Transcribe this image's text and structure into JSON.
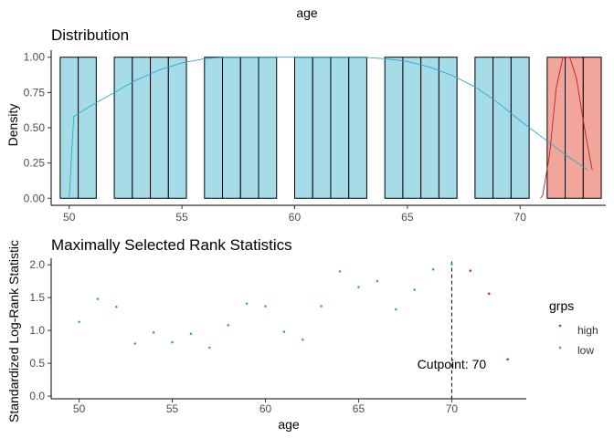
{
  "figure": {
    "title": "age"
  },
  "chart_data": [
    {
      "type": "bar",
      "title": "Distribution",
      "xlabel": "",
      "ylabel": "Density",
      "xlim": [
        49.2,
        73.8
      ],
      "ylim": [
        -0.05,
        1.05
      ],
      "x_ticks": [
        50,
        55,
        60,
        65,
        70
      ],
      "y_ticks": [
        0.0,
        0.25,
        0.5,
        0.75,
        1.0
      ],
      "y_tick_labels": [
        "0.00",
        "0.25",
        "0.50",
        "0.75",
        "1.00"
      ],
      "grid": false,
      "colors": {
        "low": "#A6DCE8",
        "high": "#F2A59A",
        "low_line": "#2AA9D2",
        "high_line": "#C0211F",
        "bar_outline": "#000000"
      },
      "bars_low": [
        {
          "x0": 49.6,
          "x1": 50.4,
          "height": 1.0
        },
        {
          "x0": 50.4,
          "x1": 51.2,
          "height": 1.0
        },
        {
          "x0": 52.0,
          "x1": 52.8,
          "height": 1.0
        },
        {
          "x0": 52.8,
          "x1": 53.6,
          "height": 1.0
        },
        {
          "x0": 53.6,
          "x1": 54.4,
          "height": 1.0
        },
        {
          "x0": 54.4,
          "x1": 55.2,
          "height": 1.0
        },
        {
          "x0": 56.0,
          "x1": 56.8,
          "height": 1.0
        },
        {
          "x0": 56.8,
          "x1": 57.6,
          "height": 1.0
        },
        {
          "x0": 57.6,
          "x1": 58.4,
          "height": 1.0
        },
        {
          "x0": 58.4,
          "x1": 59.2,
          "height": 1.0
        },
        {
          "x0": 60.0,
          "x1": 60.8,
          "height": 1.0
        },
        {
          "x0": 60.8,
          "x1": 61.6,
          "height": 1.0
        },
        {
          "x0": 61.6,
          "x1": 62.4,
          "height": 1.0
        },
        {
          "x0": 62.4,
          "x1": 63.2,
          "height": 1.0
        },
        {
          "x0": 64.0,
          "x1": 64.8,
          "height": 1.0
        },
        {
          "x0": 64.8,
          "x1": 65.6,
          "height": 1.0
        },
        {
          "x0": 65.6,
          "x1": 66.4,
          "height": 1.0
        },
        {
          "x0": 66.4,
          "x1": 67.2,
          "height": 1.0
        },
        {
          "x0": 68.0,
          "x1": 68.8,
          "height": 1.0
        },
        {
          "x0": 68.8,
          "x1": 69.6,
          "height": 1.0
        },
        {
          "x0": 69.6,
          "x1": 70.4,
          "height": 1.0
        }
      ],
      "bars_high": [
        {
          "x0": 71.2,
          "x1": 72.0,
          "height": 1.0
        },
        {
          "x0": 72.0,
          "x1": 72.8,
          "height": 1.0
        },
        {
          "x0": 72.8,
          "x1": 73.6,
          "height": 1.0
        }
      ],
      "density_low": {
        "x": [
          50.0,
          50.2,
          51,
          52,
          53,
          54,
          55,
          56,
          57,
          58,
          59,
          60,
          61,
          62,
          63,
          64,
          65,
          66,
          67,
          68,
          69,
          70,
          71,
          72,
          73.0
        ],
        "y": [
          0.0,
          0.58,
          0.66,
          0.75,
          0.84,
          0.91,
          0.96,
          0.99,
          1.0,
          1.0,
          1.0,
          1.0,
          1.0,
          1.0,
          1.0,
          0.99,
          0.97,
          0.93,
          0.87,
          0.79,
          0.68,
          0.55,
          0.43,
          0.31,
          0.2
        ]
      },
      "density_high": {
        "x": [
          70.9,
          71.0,
          71.3,
          71.6,
          71.9,
          72.2,
          72.5,
          72.8,
          73.1,
          73.2
        ],
        "y": [
          0.0,
          0.02,
          0.3,
          0.78,
          1.0,
          1.0,
          0.85,
          0.55,
          0.28,
          0.2
        ]
      }
    },
    {
      "type": "scatter",
      "title": "Maximally Selected Rank Statistics",
      "xlabel": "age",
      "ylabel": "Standardized Log-Rank Statistic",
      "xlim": [
        48.5,
        74.0
      ],
      "ylim": [
        -0.04,
        2.1
      ],
      "x_ticks": [
        50,
        55,
        60,
        65,
        70
      ],
      "y_ticks": [
        0.0,
        0.5,
        1.0,
        1.5,
        2.0
      ],
      "y_tick_labels": [
        "0.0",
        "0.5",
        "1.0",
        "1.5",
        "2.0"
      ],
      "grid": false,
      "colors": {
        "low": "#2AA9D2",
        "high": "#C0391F",
        "cutline": "#000000"
      },
      "series": [
        {
          "name": "low",
          "points": [
            {
              "x": 50,
              "y": 1.13
            },
            {
              "x": 51,
              "y": 1.48
            },
            {
              "x": 52,
              "y": 1.36
            },
            {
              "x": 53,
              "y": 0.8
            },
            {
              "x": 54,
              "y": 0.97
            },
            {
              "x": 55,
              "y": 0.82
            },
            {
              "x": 56,
              "y": 0.95
            },
            {
              "x": 57,
              "y": 0.74
            },
            {
              "x": 58,
              "y": 1.08
            },
            {
              "x": 59,
              "y": 1.41
            },
            {
              "x": 60,
              "y": 1.37
            },
            {
              "x": 61,
              "y": 0.98
            },
            {
              "x": 62,
              "y": 0.86
            },
            {
              "x": 63,
              "y": 1.37
            },
            {
              "x": 64,
              "y": 1.9
            },
            {
              "x": 65,
              "y": 1.66
            },
            {
              "x": 66,
              "y": 1.75
            },
            {
              "x": 67,
              "y": 1.32
            },
            {
              "x": 68,
              "y": 1.62
            },
            {
              "x": 69,
              "y": 1.93
            },
            {
              "x": 70,
              "y": 2.01
            }
          ]
        },
        {
          "name": "high",
          "points": [
            {
              "x": 71,
              "y": 1.91
            },
            {
              "x": 72,
              "y": 1.56
            },
            {
              "x": 73,
              "y": 0.56
            }
          ]
        }
      ],
      "cutpoint": {
        "x": 70,
        "label": "Cutpoint: 70"
      },
      "legend": {
        "title": "grps",
        "position": "right",
        "entries": [
          "high",
          "low"
        ]
      }
    }
  ]
}
